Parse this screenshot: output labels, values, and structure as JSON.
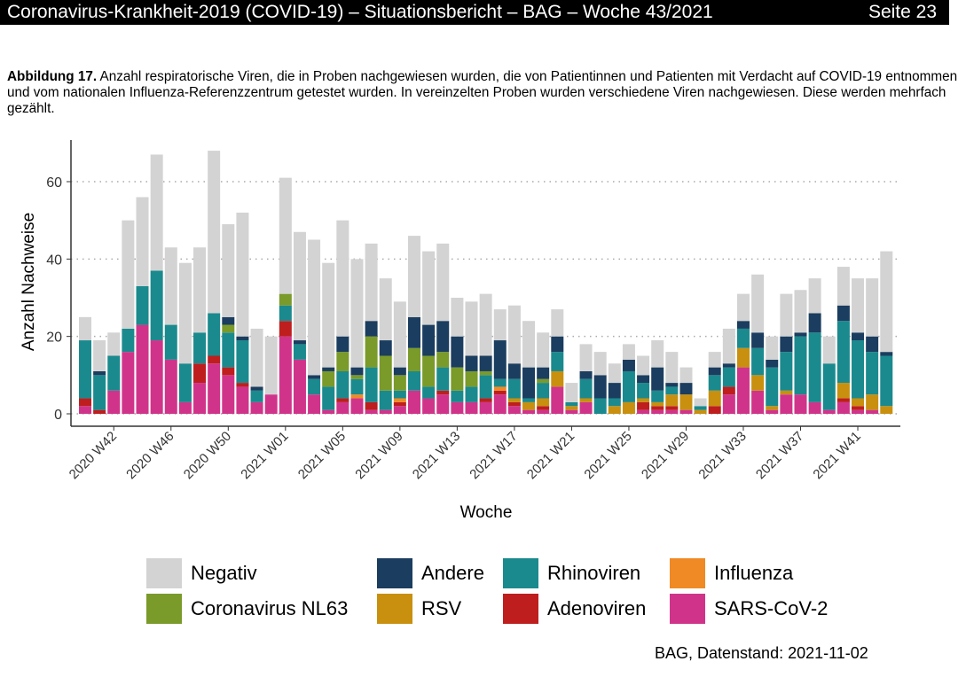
{
  "header": {
    "title": "Coronavirus-Krankheit-2019 (COVID-19) – Situationsbericht – BAG – Woche 43/2021",
    "page": "Seite 23"
  },
  "caption": {
    "label": "Abbildung 17.",
    "text": " Anzahl respiratorische Viren, die in Proben nachgewiesen wurden, die von Patientinnen und Patienten mit Verdacht auf COVID-19 entnommen und vom nationalen Influenza-Referenzzentrum getestet wurden. In vereinzelten Proben wurden verschiedene Viren nachgewiesen. Diese werden mehrfach gezählt."
  },
  "source": "BAG, Datenstand: 2021-11-02",
  "chart_data": {
    "type": "bar",
    "stacked": true,
    "xlabel": "Woche",
    "ylabel": "Anzahl Nachweise",
    "ylim": [
      0,
      70
    ],
    "yticks": [
      0,
      20,
      40,
      60
    ],
    "grid": "horizontal dotted",
    "legend_position": "bottom",
    "xtick_labels": [
      "2020 W42",
      "2020 W46",
      "2020 W50",
      "2021 W01",
      "2021 W05",
      "2021 W09",
      "2021 W13",
      "2021 W17",
      "2021 W21",
      "2021 W25",
      "2021 W29",
      "2021 W33",
      "2021 W37",
      "2021 W41"
    ],
    "categories": [
      "2020 W40",
      "2020 W41",
      "2020 W42",
      "2020 W43",
      "2020 W44",
      "2020 W45",
      "2020 W46",
      "2020 W47",
      "2020 W48",
      "2020 W49",
      "2020 W50",
      "2020 W51",
      "2020 W52",
      "2020 W53",
      "2021 W01",
      "2021 W02",
      "2021 W03",
      "2021 W04",
      "2021 W05",
      "2021 W06",
      "2021 W07",
      "2021 W08",
      "2021 W09",
      "2021 W10",
      "2021 W11",
      "2021 W12",
      "2021 W13",
      "2021 W14",
      "2021 W15",
      "2021 W16",
      "2021 W17",
      "2021 W18",
      "2021 W19",
      "2021 W20",
      "2021 W21",
      "2021 W22",
      "2021 W23",
      "2021 W24",
      "2021 W25",
      "2021 W26",
      "2021 W27",
      "2021 W28",
      "2021 W29",
      "2021 W30",
      "2021 W31",
      "2021 W32",
      "2021 W33",
      "2021 W34",
      "2021 W35",
      "2021 W36",
      "2021 W37",
      "2021 W38",
      "2021 W39",
      "2021 W40",
      "2021 W41",
      "2021 W42",
      "2021 W43"
    ],
    "series": [
      {
        "name": "SARS-CoV-2",
        "color": "#d0348a",
        "values": [
          2,
          0,
          6,
          16,
          23,
          19,
          14,
          3,
          8,
          13,
          10,
          7,
          3,
          5,
          20,
          14,
          5,
          1,
          3,
          4,
          1,
          1,
          2,
          6,
          4,
          5,
          3,
          3,
          3,
          5,
          2,
          1,
          1,
          7,
          1,
          3,
          0,
          0,
          0,
          1,
          1,
          1,
          1,
          0,
          0,
          5,
          12,
          6,
          1,
          5,
          5,
          3,
          1,
          3,
          1,
          1,
          0
        ]
      },
      {
        "name": "Adenoviren",
        "color": "#be1e1e",
        "values": [
          2,
          1,
          0,
          0,
          0,
          0,
          0,
          0,
          5,
          2,
          2,
          1,
          0,
          0,
          4,
          0,
          0,
          0,
          1,
          0,
          2,
          0,
          1,
          0,
          0,
          1,
          0,
          0,
          1,
          1,
          1,
          0,
          1,
          0,
          0,
          0,
          0,
          0,
          0,
          2,
          1,
          1,
          0,
          0,
          2,
          2,
          0,
          0,
          0,
          0,
          0,
          0,
          0,
          1,
          1,
          0,
          0
        ]
      },
      {
        "name": "Influenza",
        "color": "#f08a24",
        "values": [
          0,
          0,
          0,
          0,
          0,
          0,
          0,
          0,
          0,
          0,
          0,
          0,
          0,
          0,
          0,
          0,
          0,
          0,
          0,
          1,
          0,
          0,
          1,
          0,
          0,
          0,
          0,
          0,
          0,
          1,
          0,
          0,
          0,
          0,
          0,
          0,
          0,
          0,
          0,
          0,
          0,
          0,
          0,
          0,
          0,
          0,
          0,
          0,
          0,
          0,
          0,
          0,
          0,
          0,
          0,
          0,
          0
        ]
      },
      {
        "name": "RSV",
        "color": "#c8900e",
        "values": [
          0,
          0,
          0,
          0,
          0,
          0,
          0,
          0,
          0,
          0,
          0,
          0,
          0,
          0,
          0,
          0,
          0,
          0,
          0,
          0,
          0,
          0,
          0,
          0,
          0,
          0,
          0,
          0,
          0,
          0,
          1,
          2,
          2,
          4,
          1,
          1,
          0,
          2,
          3,
          1,
          1,
          3,
          4,
          1,
          4,
          0,
          5,
          4,
          1,
          1,
          0,
          0,
          0,
          4,
          2,
          4,
          2
        ]
      },
      {
        "name": "Rhinoviren",
        "color": "#1a8a8e",
        "values": [
          15,
          9,
          9,
          6,
          10,
          18,
          9,
          10,
          8,
          11,
          9,
          11,
          3,
          0,
          4,
          4,
          4,
          6,
          7,
          4,
          9,
          5,
          2,
          5,
          3,
          6,
          3,
          4,
          6,
          2,
          5,
          1,
          4,
          5,
          1,
          5,
          4,
          2,
          8,
          4,
          3,
          2,
          0,
          1,
          4,
          5,
          5,
          7,
          10,
          10,
          15,
          18,
          12,
          16,
          15,
          11,
          13
        ]
      },
      {
        "name": "Coronavirus NL63",
        "color": "#7a9a2a",
        "values": [
          0,
          0,
          0,
          0,
          0,
          0,
          0,
          0,
          0,
          0,
          2,
          0,
          0,
          0,
          3,
          0,
          0,
          4,
          5,
          1,
          8,
          9,
          4,
          6,
          8,
          4,
          6,
          4,
          1,
          0,
          0,
          0,
          1,
          0,
          0,
          0,
          0,
          0,
          0,
          0,
          0,
          0,
          0,
          0,
          0,
          0,
          0,
          0,
          0,
          0,
          0,
          0,
          0,
          0,
          0,
          0,
          0
        ]
      },
      {
        "name": "Andere",
        "color": "#1b3d5f",
        "values": [
          0,
          1,
          0,
          0,
          0,
          0,
          0,
          0,
          0,
          0,
          2,
          1,
          1,
          0,
          0,
          1,
          1,
          1,
          4,
          2,
          4,
          4,
          2,
          8,
          8,
          8,
          8,
          4,
          4,
          10,
          4,
          8,
          3,
          4,
          0,
          2,
          6,
          4,
          3,
          2,
          6,
          1,
          3,
          0,
          2,
          1,
          2,
          4,
          2,
          4,
          1,
          5,
          0,
          4,
          2,
          4,
          1
        ]
      },
      {
        "name": "Negativ",
        "color": "#d3d3d3",
        "values": [
          6,
          8,
          6,
          28,
          23,
          30,
          20,
          26,
          22,
          42,
          24,
          32,
          15,
          15,
          30,
          28,
          35,
          27,
          30,
          28,
          20,
          16,
          17,
          21,
          19,
          20,
          10,
          14,
          16,
          8,
          15,
          12,
          9,
          7,
          5,
          7,
          6,
          5,
          4,
          5,
          7,
          8,
          4,
          2,
          4,
          9,
          7,
          15,
          6,
          11,
          11,
          9,
          7,
          10,
          14,
          15,
          26
        ]
      }
    ],
    "legend_order": [
      "Negativ",
      "Andere",
      "Rhinoviren",
      "Influenza",
      "Coronavirus NL63",
      "RSV",
      "Adenoviren",
      "SARS-CoV-2"
    ]
  }
}
